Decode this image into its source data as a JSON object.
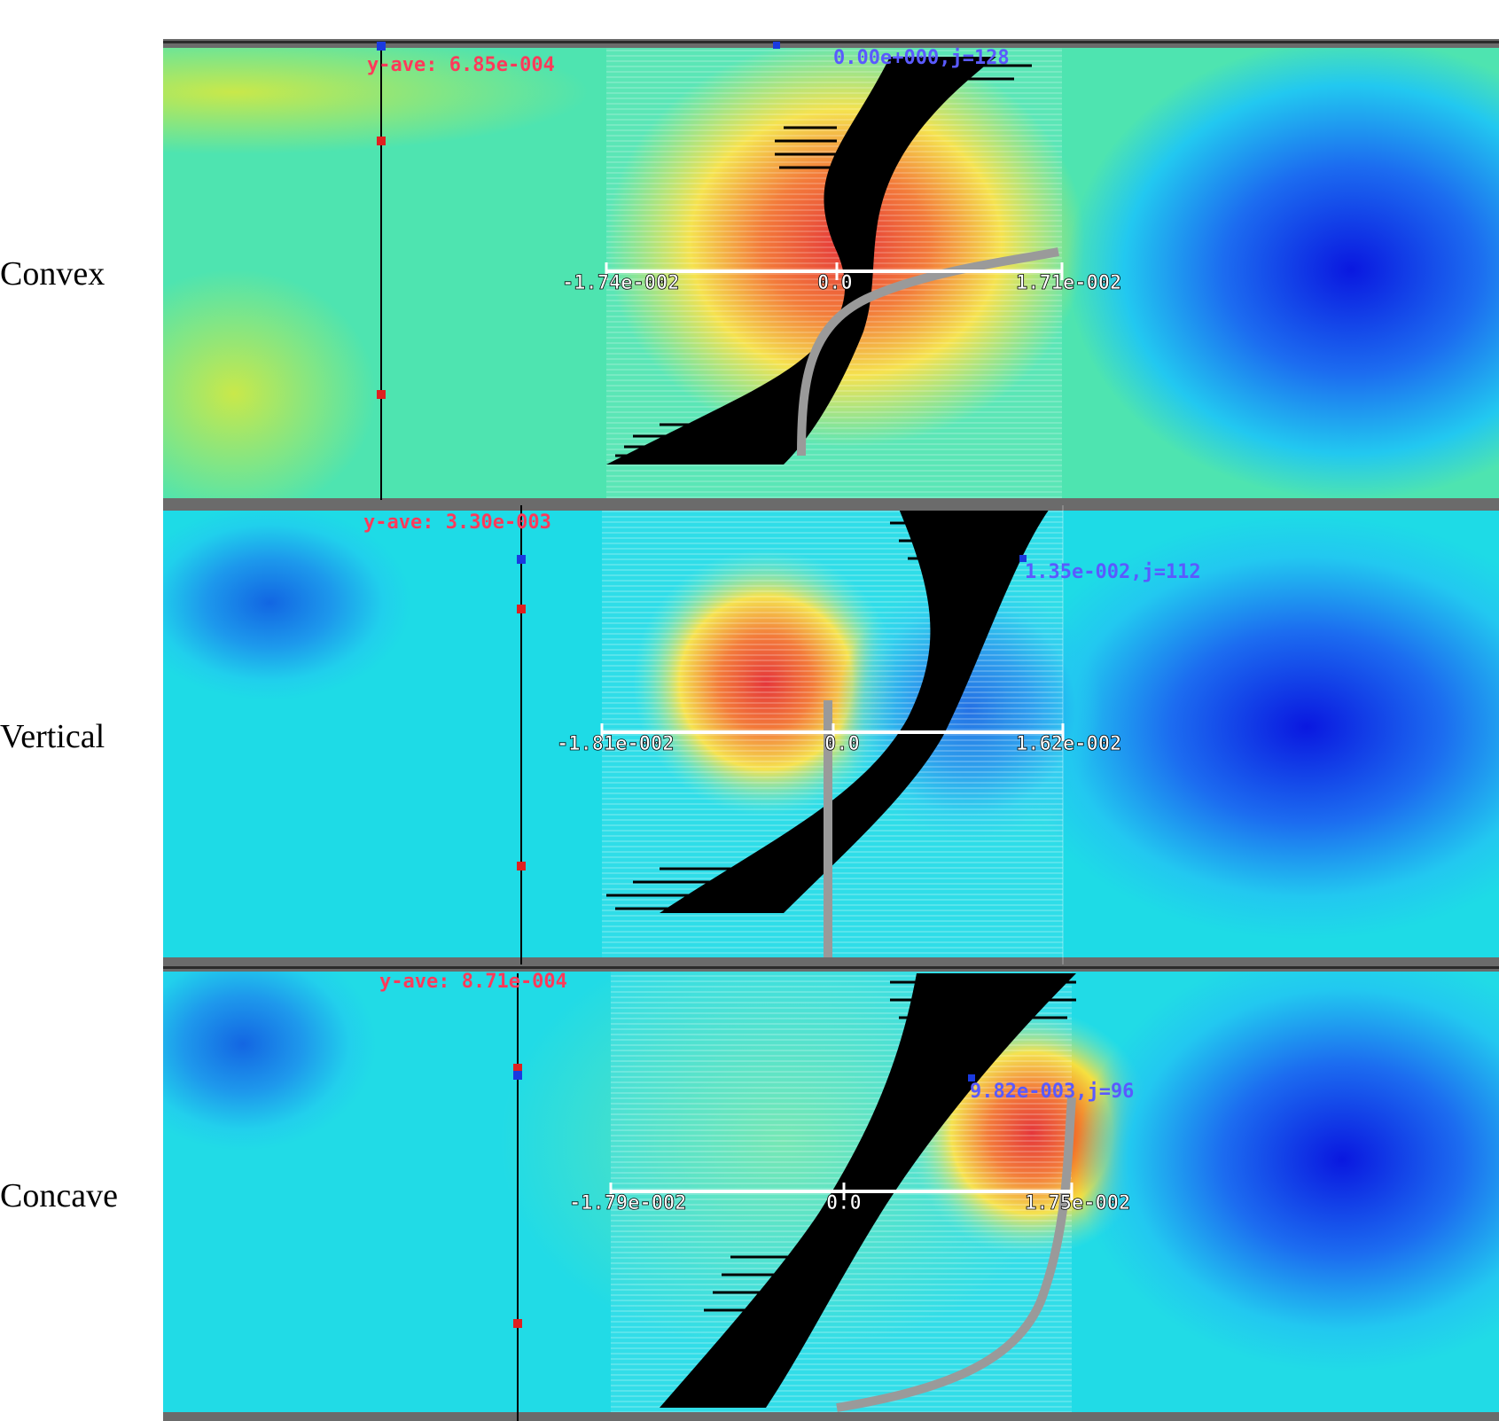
{
  "panels": [
    {
      "label": "Convex",
      "y_ave_label": "y-ave: 6.85e-004",
      "probe_label": "0.00e+000,j=128",
      "axis": {
        "left": "-1.74e-002",
        "zero": "0.0",
        "right": "1.71e-002"
      },
      "colors": {
        "background": "#45e6b8",
        "hot": "#e3262a",
        "cold": "#0a18e0"
      }
    },
    {
      "label": "Vertical",
      "y_ave_label": "y-ave: 3.30e-003",
      "probe_label": "1.35e-002,j=112",
      "axis": {
        "left": "-1.81e-002",
        "zero": "0.0",
        "right": "1.62e-002"
      },
      "colors": {
        "background": "#1edbe6",
        "hot": "#e3262a",
        "cold": "#0a18e0"
      }
    },
    {
      "label": "Concave",
      "y_ave_label": "y-ave: 8.71e-004",
      "probe_label": "9.82e-003,j=96",
      "axis": {
        "left": "-1.79e-002",
        "zero": "0.0",
        "right": "1.75e-002"
      },
      "colors": {
        "background": "#21dbe6",
        "hot": "#e3262a",
        "cold": "#0a18e0"
      }
    }
  ]
}
